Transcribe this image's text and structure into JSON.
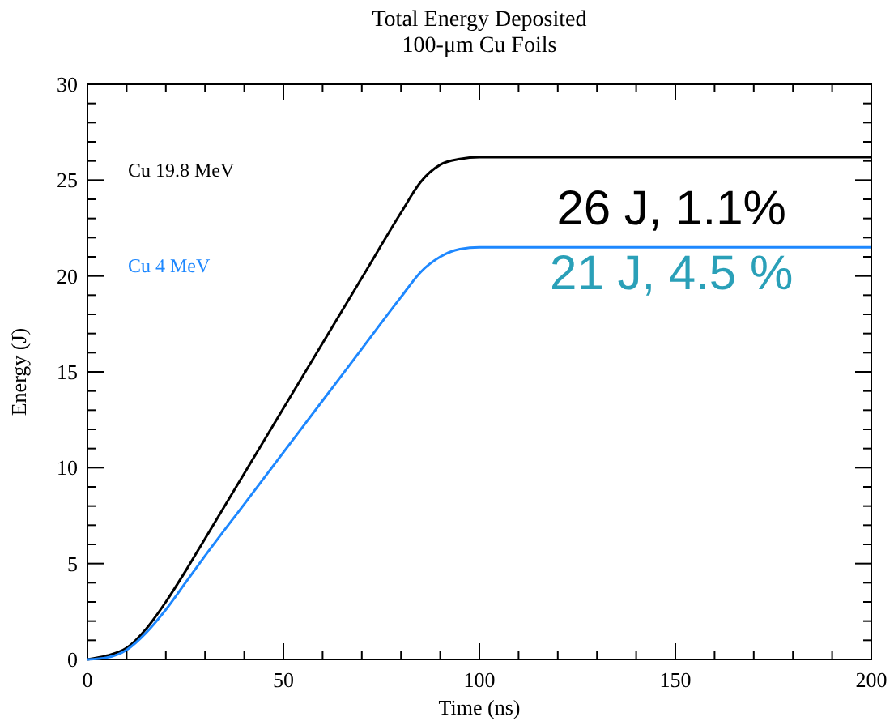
{
  "chart_data": {
    "type": "line",
    "title": "Total Energy Deposited",
    "subtitle": "100-μm Cu Foils",
    "xlabel": "Time (ns)",
    "ylabel": "Energy (J)",
    "x": [
      0,
      5,
      10,
      15,
      20,
      25,
      30,
      40,
      50,
      60,
      70,
      80,
      85,
      90,
      95,
      100,
      200
    ],
    "series": [
      {
        "name": "Cu 19.8 MeV",
        "color": "#000000",
        "values": [
          0,
          0.2,
          0.6,
          1.6,
          3.0,
          4.6,
          6.3,
          9.7,
          13.1,
          16.5,
          19.9,
          23.3,
          24.9,
          25.8,
          26.1,
          26.2,
          26.2
        ]
      },
      {
        "name": "Cu 4 MeV",
        "color": "#1e88ff",
        "values": [
          0,
          0.1,
          0.5,
          1.4,
          2.6,
          4.0,
          5.4,
          8.1,
          10.8,
          13.5,
          16.2,
          18.9,
          20.2,
          21.0,
          21.4,
          21.5,
          21.5
        ]
      }
    ],
    "annotations": [
      "26 J, 1.1%",
      "21 J, 4.5 %"
    ],
    "xlim": [
      0,
      200
    ],
    "ylim": [
      0,
      30
    ],
    "xticks": [
      0,
      {
        "value": 10,
        "label": null
      },
      {
        "value": 20,
        "label": null
      },
      {
        "value": 30,
        "label": null
      },
      {
        "value": 40,
        "label": null
      },
      50,
      {
        "value": 60,
        "label": null
      },
      {
        "value": 70,
        "label": null
      },
      {
        "value": 80,
        "label": null
      },
      {
        "value": 90,
        "label": null
      },
      100,
      {
        "value": 110,
        "label": null
      },
      {
        "value": 120,
        "label": null
      },
      {
        "value": 130,
        "label": null
      },
      {
        "value": 140,
        "label": null
      },
      150,
      {
        "value": 160,
        "label": null
      },
      {
        "value": 170,
        "label": null
      },
      {
        "value": 180,
        "label": null
      },
      {
        "value": 190,
        "label": null
      },
      200
    ],
    "yticks": [
      0,
      {
        "value": 1,
        "label": null
      },
      {
        "value": 2,
        "label": null
      },
      {
        "value": 3,
        "label": null
      },
      {
        "value": 4,
        "label": null
      },
      5,
      {
        "value": 6,
        "label": null
      },
      {
        "value": 7,
        "label": null
      },
      {
        "value": 8,
        "label": null
      },
      {
        "value": 9,
        "label": null
      },
      10,
      {
        "value": 11,
        "label": null
      },
      {
        "value": 12,
        "label": null
      },
      {
        "value": 13,
        "label": null
      },
      {
        "value": 14,
        "label": null
      },
      15,
      {
        "value": 16,
        "label": null
      },
      {
        "value": 17,
        "label": null
      },
      {
        "value": 18,
        "label": null
      },
      {
        "value": 19,
        "label": null
      },
      20,
      {
        "value": 21,
        "label": null
      },
      {
        "value": 22,
        "label": null
      },
      {
        "value": 23,
        "label": null
      },
      {
        "value": 24,
        "label": null
      },
      25,
      {
        "value": 26,
        "label": null
      },
      {
        "value": 27,
        "label": null
      },
      {
        "value": 28,
        "label": null
      },
      {
        "value": 29,
        "label": null
      },
      30
    ],
    "legend": "top left",
    "grid": false,
    "marker": "none",
    "line_style": "solid"
  }
}
